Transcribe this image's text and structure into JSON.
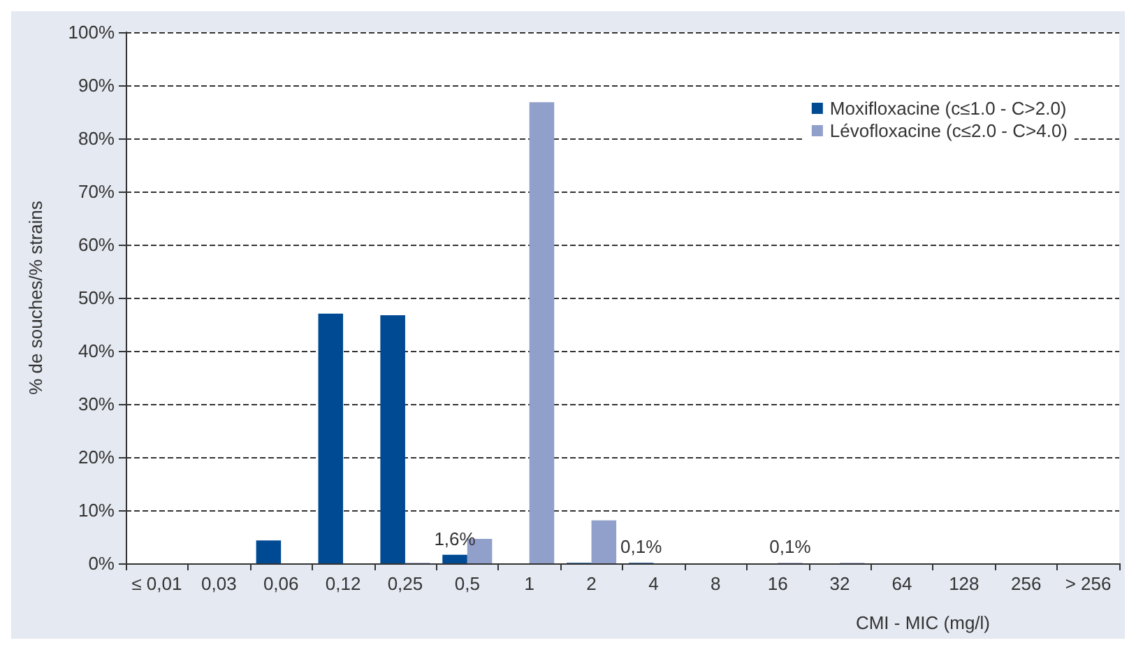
{
  "chart_data": {
    "type": "bar",
    "xlabel": "CMI - MIC (mg/l)",
    "ylabel": "% de souches/% strains",
    "categories": [
      "≤ 0,01",
      "0,03",
      "0,06",
      "0,12",
      "0,25",
      "0,5",
      "1",
      "2",
      "4",
      "8",
      "16",
      "32",
      "64",
      "128",
      "256",
      "> 256"
    ],
    "series": [
      {
        "name": "Moxifloxacine (c≤1.0 - C>2.0)",
        "color": "#004a93",
        "values": [
          0,
          0,
          4.3,
          47.0,
          46.7,
          1.6,
          0,
          0.1,
          0.1,
          0,
          0,
          0,
          0,
          0,
          0,
          0
        ],
        "value_labels": [
          null,
          null,
          null,
          null,
          null,
          "1,6%",
          null,
          null,
          "0,1%",
          null,
          null,
          null,
          null,
          null,
          null,
          null
        ]
      },
      {
        "name": "Lévofloxacine (c≤2.0 - C>4.0)",
        "color": "#919fcb",
        "values": [
          0,
          0,
          0,
          0,
          0.1,
          4.6,
          86.8,
          8.1,
          0,
          0,
          0.1,
          0.1,
          0,
          0,
          0,
          0
        ],
        "value_labels": [
          null,
          null,
          null,
          null,
          null,
          null,
          null,
          null,
          null,
          null,
          "0,1%",
          null,
          null,
          null,
          null,
          null
        ]
      }
    ],
    "ylim": [
      0,
      100
    ],
    "yticks": [
      {
        "value": 0,
        "label": "0%"
      },
      {
        "value": 10,
        "label": "10%"
      },
      {
        "value": 20,
        "label": "20%"
      },
      {
        "value": 30,
        "label": "30%"
      },
      {
        "value": 40,
        "label": "40%"
      },
      {
        "value": 50,
        "label": "50%"
      },
      {
        "value": 60,
        "label": "60%"
      },
      {
        "value": 70,
        "label": "70%"
      },
      {
        "value": 80,
        "label": "80%"
      },
      {
        "value": 90,
        "label": "90%"
      },
      {
        "value": 100,
        "label": "100%"
      }
    ],
    "grid": "y",
    "legend": "top right",
    "line_style": "dashed"
  }
}
